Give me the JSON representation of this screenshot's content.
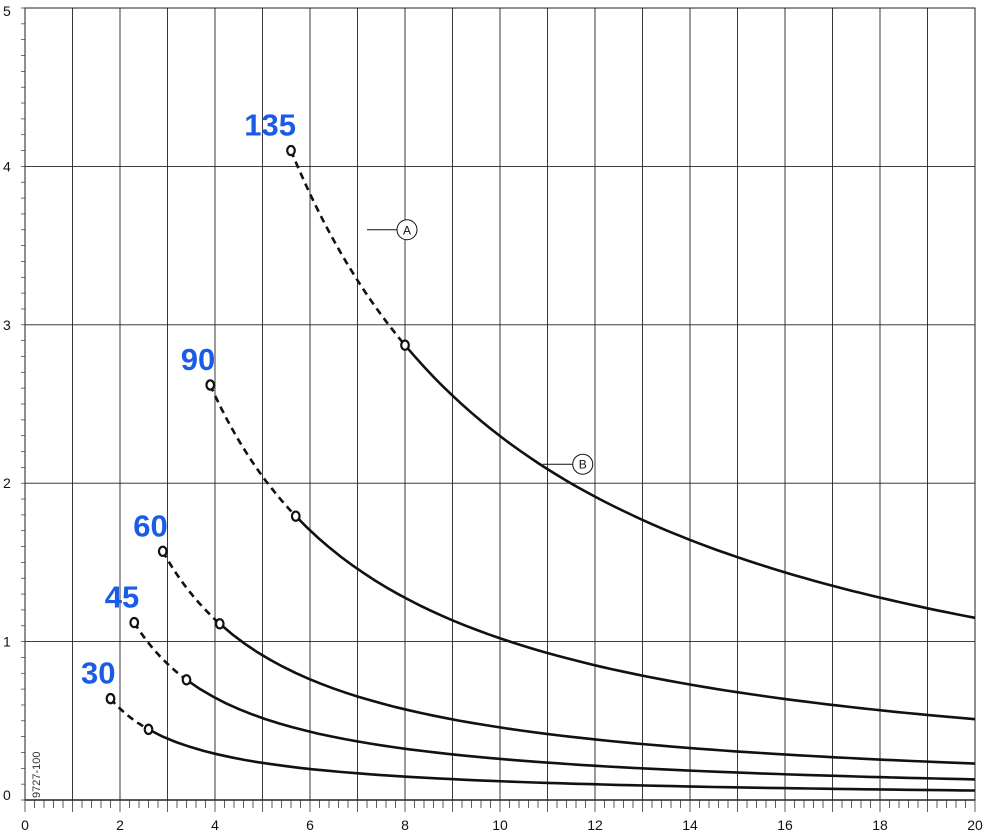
{
  "chart_data": {
    "type": "line",
    "title": "",
    "xlabel": "",
    "ylabel": "",
    "xlim": [
      0,
      20
    ],
    "ylim": [
      0,
      5
    ],
    "xticks": [
      0,
      2,
      4,
      6,
      8,
      10,
      12,
      14,
      16,
      18,
      20
    ],
    "yticks": [
      0,
      1,
      2,
      3,
      4,
      5
    ],
    "grid": true,
    "curve_color": "#111111",
    "label_color": "#1a5ce6",
    "series": [
      {
        "name": "135",
        "dashed_start": [
          5.6,
          4.1
        ],
        "solid_start": [
          8.0,
          2.86
        ],
        "end": [
          20,
          1.15
        ]
      },
      {
        "name": "90",
        "dashed_start": [
          3.9,
          2.62
        ],
        "solid_start": [
          5.7,
          1.77
        ],
        "end": [
          20,
          0.51
        ]
      },
      {
        "name": "60",
        "dashed_start": [
          2.9,
          1.57
        ],
        "solid_start": [
          4.1,
          1.11
        ],
        "end": [
          20,
          0.23
        ]
      },
      {
        "name": "45",
        "dashed_start": [
          2.3,
          1.12
        ],
        "solid_start": [
          3.4,
          0.76
        ],
        "end": [
          20,
          0.13
        ]
      },
      {
        "name": "30",
        "dashed_start": [
          1.8,
          0.64
        ],
        "solid_start": [
          2.6,
          0.44
        ],
        "end": [
          20,
          0.06
        ]
      }
    ],
    "annotations": [
      {
        "text": "A",
        "points_to": [
          7.2,
          3.6
        ],
        "series": "135"
      },
      {
        "text": "B",
        "points_to": [
          10.9,
          2.12
        ],
        "series": "135"
      }
    ],
    "side_code": "9727-100"
  }
}
